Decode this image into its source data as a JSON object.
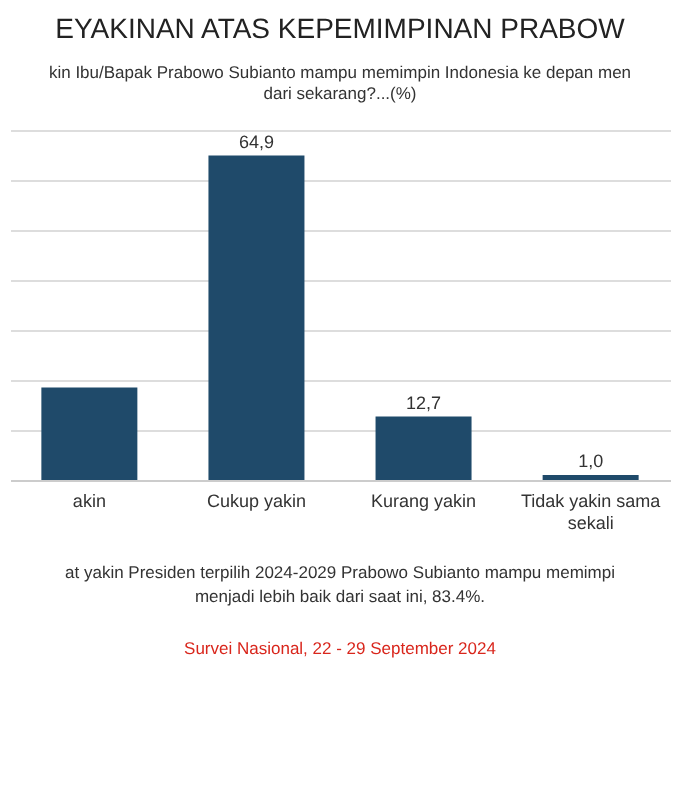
{
  "chart_data": {
    "type": "bar",
    "title": "EYAKINAN ATAS KEPEMIMPINAN PRABOW",
    "subtitle": "kin Ibu/Bapak Prabowo Subianto mampu memimpin Indonesia ke depan men\ndari sekarang?...(%)",
    "categories": [
      "akin",
      "Cukup yakin",
      "Kurang yakin",
      "Tidak yakin sama\nsekali"
    ],
    "values": [
      18.5,
      64.9,
      12.7,
      1.0
    ],
    "value_labels": [
      null,
      "64,9",
      "12,7",
      "1,0"
    ],
    "color": "#1f4a6a",
    "ylim": [
      0,
      70
    ],
    "yticks": [
      {
        "value": 0,
        "label": null
      },
      {
        "value": 10,
        "label": null
      },
      {
        "value": 20,
        "label": null
      },
      {
        "value": 30,
        "label": null
      },
      {
        "value": 40,
        "label": null
      },
      {
        "value": 50,
        "label": null
      },
      {
        "value": 60,
        "label": null
      },
      {
        "value": 70,
        "label": null
      }
    ],
    "tick_labels": "x",
    "grid": "y",
    "annotations": [
      "at yakin Presiden terpilih 2024-2029 Prabowo Subianto mampu memimpi\nmenjadi lebih baik dari saat ini, 83.4%.",
      "Survei Nasional, 22 - 29 September 2024"
    ]
  }
}
